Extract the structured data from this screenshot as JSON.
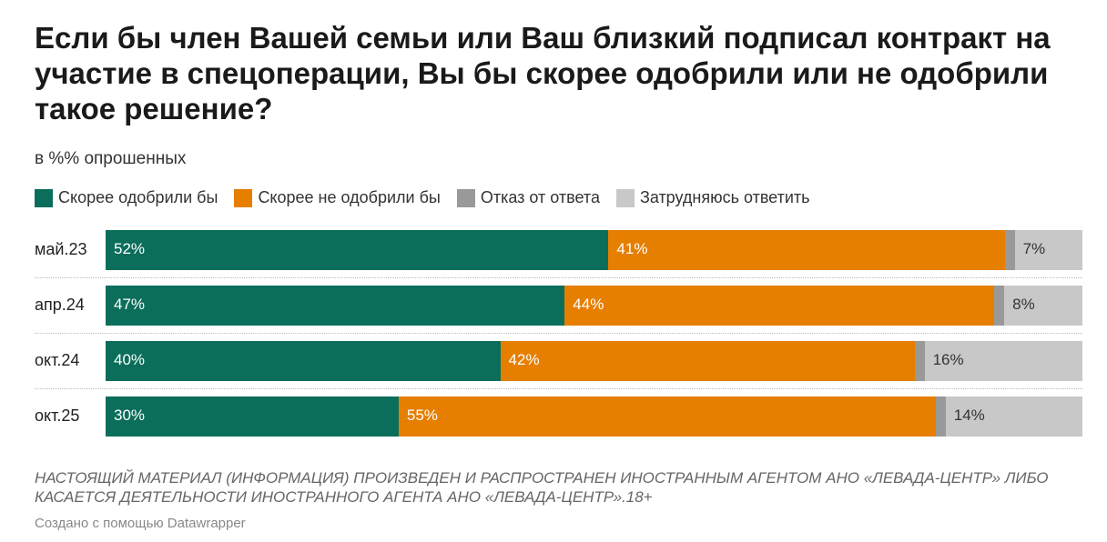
{
  "title": "Если бы член Вашей семьи или Ваш близкий подписал контракт на участие в спецоперации, Вы бы скорее одобрили или не одобрили такое решение?",
  "subtitle": "в %% опрошенных",
  "note": "НАСТОЯЩИЙ МАТЕРИАЛ (ИНФОРМАЦИЯ) ПРОИЗВЕДЕН И РАСПРОСТРАНЕН ИНОСТРАННЫМ АГЕНТОМ АНО «ЛЕВАДА-ЦЕНТР» ЛИБО КАСАЕТСЯ ДЕЯТЕЛЬНОСТИ ИНОСТРАННОГО АГЕНТА АНО «ЛЕВАДА-ЦЕНТР».18+",
  "credit": "Создано с помощью Datawrapper",
  "chart_data": {
    "type": "bar",
    "orientation": "horizontal",
    "stacked": true,
    "title": "Если бы член Вашей семьи или Ваш близкий подписал контракт на участие в спецоперации, Вы бы скорее одобрили или не одобрили такое решение?",
    "subtitle": "в %% опрошенных",
    "legend_position": "top",
    "categories": [
      "май.23",
      "апр.24",
      "окт.24",
      "окт.25"
    ],
    "series": [
      {
        "name": "Скорее одобрили бы",
        "color": "#0b6e5a",
        "values": [
          52,
          47,
          40,
          30
        ],
        "labels": [
          "52%",
          "47%",
          "40%",
          "30%"
        ],
        "label_color": "#ffffff"
      },
      {
        "name": "Скорее не одобрили бы",
        "color": "#e67e00",
        "values": [
          41,
          44,
          42,
          55
        ],
        "labels": [
          "41%",
          "44%",
          "42%",
          "55%"
        ],
        "label_color": "#ffffff"
      },
      {
        "name": "Отказ от ответа",
        "color": "#999999",
        "values": [
          1,
          1,
          1,
          1
        ],
        "labels": [
          "",
          "",
          "",
          ""
        ],
        "label_color": "#333333"
      },
      {
        "name": "Затрудняюсь ответить",
        "color": "#c8c8c8",
        "values": [
          7,
          8,
          16,
          14
        ],
        "labels": [
          "7%",
          "8%",
          "16%",
          "14%"
        ],
        "label_color": "#333333"
      }
    ]
  }
}
